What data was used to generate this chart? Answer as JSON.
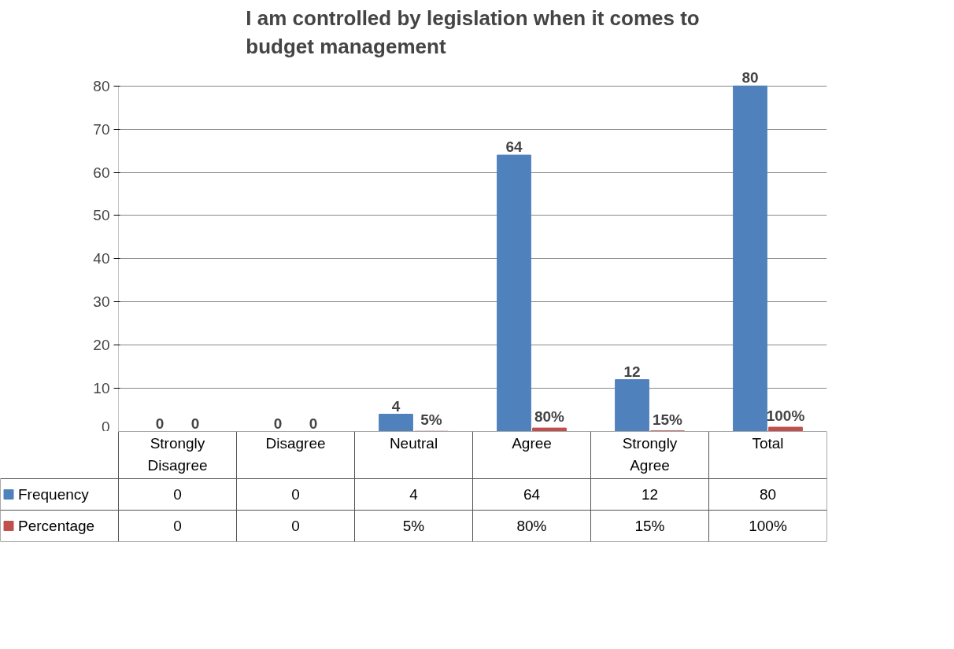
{
  "chart_data": {
    "type": "bar",
    "title": "I am controlled by legislation when it comes to budget management",
    "categories": [
      "Strongly Disagree",
      "Disagree",
      "Neutral",
      "Agree",
      "Strongly Agree",
      "Total"
    ],
    "series": [
      {
        "name": "Frequency",
        "color": "#4f81bd",
        "values": [
          0,
          0,
          4,
          64,
          12,
          80
        ],
        "value_labels": [
          "0",
          "0",
          "4",
          "64",
          "12",
          "80"
        ]
      },
      {
        "name": "Percentage",
        "color": "#c0504d",
        "values": [
          0,
          0,
          0.05,
          0.8,
          0.15,
          1
        ],
        "value_labels": [
          "0",
          "0",
          "5%",
          "80%",
          "15%",
          "100%"
        ]
      }
    ],
    "ylim": [
      0,
      80
    ],
    "yticks": [
      0,
      10,
      20,
      30,
      40,
      50,
      60,
      70,
      80
    ],
    "grid": "y",
    "legend": "bottom"
  }
}
